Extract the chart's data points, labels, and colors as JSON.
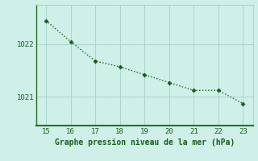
{
  "x": [
    15,
    16,
    17,
    18,
    19,
    20,
    21,
    22,
    23
  ],
  "y": [
    1022.45,
    1022.05,
    1021.68,
    1021.57,
    1021.42,
    1021.27,
    1021.12,
    1021.12,
    1020.87
  ],
  "line_color": "#1a5c1a",
  "marker": "D",
  "marker_size": 2.5,
  "line_width": 1.0,
  "background_color": "#cef0e8",
  "grid_color": "#aad4cc",
  "xlabel": "Graphe pression niveau de la mer (hPa)",
  "xlabel_color": "#1a5c1a",
  "xlabel_fontsize": 7,
  "tick_color": "#1a5c1a",
  "tick_fontsize": 6.5,
  "ytick_labels": [
    1021,
    1022
  ],
  "xlim": [
    14.6,
    23.4
  ],
  "ylim": [
    1020.45,
    1022.75
  ],
  "xticks": [
    15,
    16,
    17,
    18,
    19,
    20,
    21,
    22,
    23
  ]
}
